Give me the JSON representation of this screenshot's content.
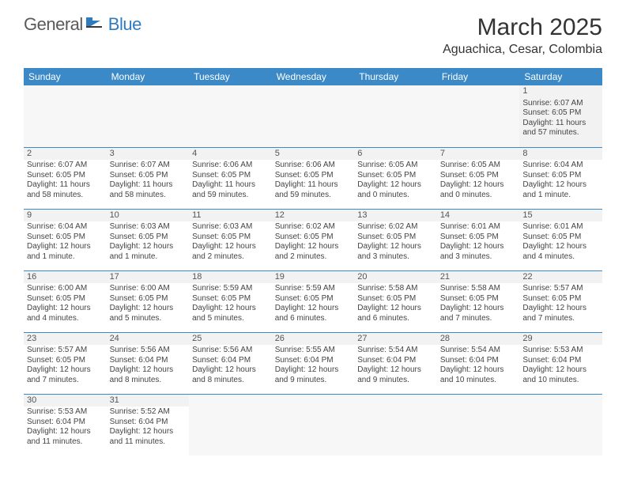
{
  "logo": {
    "text1": "General",
    "text2": "Blue"
  },
  "title": "March 2025",
  "location": "Aguachica, Cesar, Colombia",
  "colors": {
    "header_bg": "#3b89c7",
    "header_text": "#ffffff",
    "border": "#3b89c7",
    "shade": "#f2f2f2"
  },
  "weekdays": [
    "Sunday",
    "Monday",
    "Tuesday",
    "Wednesday",
    "Thursday",
    "Friday",
    "Saturday"
  ],
  "weeks": [
    [
      null,
      null,
      null,
      null,
      null,
      null,
      {
        "n": "1",
        "sr": "Sunrise: 6:07 AM",
        "ss": "Sunset: 6:05 PM",
        "dl": "Daylight: 11 hours and 57 minutes."
      }
    ],
    [
      {
        "n": "2",
        "sr": "Sunrise: 6:07 AM",
        "ss": "Sunset: 6:05 PM",
        "dl": "Daylight: 11 hours and 58 minutes."
      },
      {
        "n": "3",
        "sr": "Sunrise: 6:07 AM",
        "ss": "Sunset: 6:05 PM",
        "dl": "Daylight: 11 hours and 58 minutes."
      },
      {
        "n": "4",
        "sr": "Sunrise: 6:06 AM",
        "ss": "Sunset: 6:05 PM",
        "dl": "Daylight: 11 hours and 59 minutes."
      },
      {
        "n": "5",
        "sr": "Sunrise: 6:06 AM",
        "ss": "Sunset: 6:05 PM",
        "dl": "Daylight: 11 hours and 59 minutes."
      },
      {
        "n": "6",
        "sr": "Sunrise: 6:05 AM",
        "ss": "Sunset: 6:05 PM",
        "dl": "Daylight: 12 hours and 0 minutes."
      },
      {
        "n": "7",
        "sr": "Sunrise: 6:05 AM",
        "ss": "Sunset: 6:05 PM",
        "dl": "Daylight: 12 hours and 0 minutes."
      },
      {
        "n": "8",
        "sr": "Sunrise: 6:04 AM",
        "ss": "Sunset: 6:05 PM",
        "dl": "Daylight: 12 hours and 1 minute."
      }
    ],
    [
      {
        "n": "9",
        "sr": "Sunrise: 6:04 AM",
        "ss": "Sunset: 6:05 PM",
        "dl": "Daylight: 12 hours and 1 minute."
      },
      {
        "n": "10",
        "sr": "Sunrise: 6:03 AM",
        "ss": "Sunset: 6:05 PM",
        "dl": "Daylight: 12 hours and 1 minute."
      },
      {
        "n": "11",
        "sr": "Sunrise: 6:03 AM",
        "ss": "Sunset: 6:05 PM",
        "dl": "Daylight: 12 hours and 2 minutes."
      },
      {
        "n": "12",
        "sr": "Sunrise: 6:02 AM",
        "ss": "Sunset: 6:05 PM",
        "dl": "Daylight: 12 hours and 2 minutes."
      },
      {
        "n": "13",
        "sr": "Sunrise: 6:02 AM",
        "ss": "Sunset: 6:05 PM",
        "dl": "Daylight: 12 hours and 3 minutes."
      },
      {
        "n": "14",
        "sr": "Sunrise: 6:01 AM",
        "ss": "Sunset: 6:05 PM",
        "dl": "Daylight: 12 hours and 3 minutes."
      },
      {
        "n": "15",
        "sr": "Sunrise: 6:01 AM",
        "ss": "Sunset: 6:05 PM",
        "dl": "Daylight: 12 hours and 4 minutes."
      }
    ],
    [
      {
        "n": "16",
        "sr": "Sunrise: 6:00 AM",
        "ss": "Sunset: 6:05 PM",
        "dl": "Daylight: 12 hours and 4 minutes."
      },
      {
        "n": "17",
        "sr": "Sunrise: 6:00 AM",
        "ss": "Sunset: 6:05 PM",
        "dl": "Daylight: 12 hours and 5 minutes."
      },
      {
        "n": "18",
        "sr": "Sunrise: 5:59 AM",
        "ss": "Sunset: 6:05 PM",
        "dl": "Daylight: 12 hours and 5 minutes."
      },
      {
        "n": "19",
        "sr": "Sunrise: 5:59 AM",
        "ss": "Sunset: 6:05 PM",
        "dl": "Daylight: 12 hours and 6 minutes."
      },
      {
        "n": "20",
        "sr": "Sunrise: 5:58 AM",
        "ss": "Sunset: 6:05 PM",
        "dl": "Daylight: 12 hours and 6 minutes."
      },
      {
        "n": "21",
        "sr": "Sunrise: 5:58 AM",
        "ss": "Sunset: 6:05 PM",
        "dl": "Daylight: 12 hours and 7 minutes."
      },
      {
        "n": "22",
        "sr": "Sunrise: 5:57 AM",
        "ss": "Sunset: 6:05 PM",
        "dl": "Daylight: 12 hours and 7 minutes."
      }
    ],
    [
      {
        "n": "23",
        "sr": "Sunrise: 5:57 AM",
        "ss": "Sunset: 6:05 PM",
        "dl": "Daylight: 12 hours and 7 minutes."
      },
      {
        "n": "24",
        "sr": "Sunrise: 5:56 AM",
        "ss": "Sunset: 6:04 PM",
        "dl": "Daylight: 12 hours and 8 minutes."
      },
      {
        "n": "25",
        "sr": "Sunrise: 5:56 AM",
        "ss": "Sunset: 6:04 PM",
        "dl": "Daylight: 12 hours and 8 minutes."
      },
      {
        "n": "26",
        "sr": "Sunrise: 5:55 AM",
        "ss": "Sunset: 6:04 PM",
        "dl": "Daylight: 12 hours and 9 minutes."
      },
      {
        "n": "27",
        "sr": "Sunrise: 5:54 AM",
        "ss": "Sunset: 6:04 PM",
        "dl": "Daylight: 12 hours and 9 minutes."
      },
      {
        "n": "28",
        "sr": "Sunrise: 5:54 AM",
        "ss": "Sunset: 6:04 PM",
        "dl": "Daylight: 12 hours and 10 minutes."
      },
      {
        "n": "29",
        "sr": "Sunrise: 5:53 AM",
        "ss": "Sunset: 6:04 PM",
        "dl": "Daylight: 12 hours and 10 minutes."
      }
    ],
    [
      {
        "n": "30",
        "sr": "Sunrise: 5:53 AM",
        "ss": "Sunset: 6:04 PM",
        "dl": "Daylight: 12 hours and 11 minutes."
      },
      {
        "n": "31",
        "sr": "Sunrise: 5:52 AM",
        "ss": "Sunset: 6:04 PM",
        "dl": "Daylight: 12 hours and 11 minutes."
      },
      null,
      null,
      null,
      null,
      null
    ]
  ]
}
